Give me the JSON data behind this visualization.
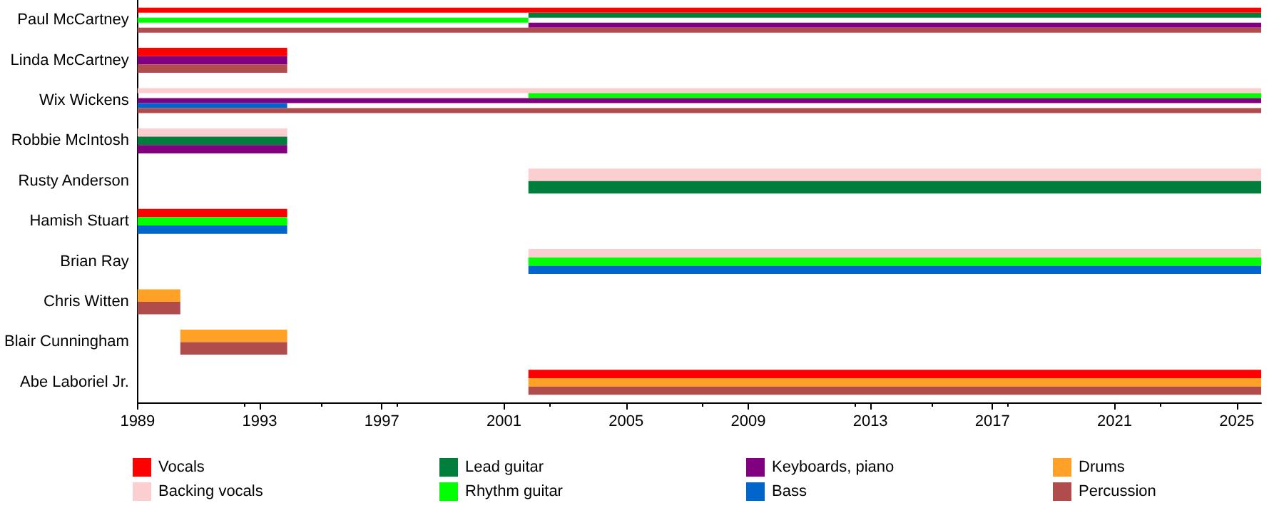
{
  "chart_data": {
    "type": "bar",
    "orientation": "horizontal",
    "categories": [
      "Paul McCartney",
      "Linda McCartney",
      "Wix Wickens",
      "Robbie McIntosh",
      "Rusty Anderson",
      "Hamish Stuart",
      "Brian Ray",
      "Chris Witten",
      "Blair Cunningham",
      "Abe Laboriel Jr."
    ],
    "xlim": [
      1989,
      2025.8
    ],
    "xticks": [
      1989,
      1993,
      1997,
      2001,
      2005,
      2009,
      2013,
      2017,
      2021,
      2025
    ],
    "grid": false,
    "legend": "bottom",
    "series": [
      {
        "name": "Vocals",
        "color": "#ff0000",
        "base": [
          1989,
          1989,
          null,
          null,
          null,
          1989,
          null,
          null,
          null,
          2001.8
        ],
        "values": [
          36.8,
          4.9,
          null,
          null,
          null,
          4.9,
          null,
          null,
          null,
          24.0
        ]
      },
      {
        "name": "Backing vocals",
        "color": "#fbcfcf",
        "base": [
          null,
          null,
          1989,
          1989,
          2001.8,
          null,
          2001.8,
          null,
          null,
          null
        ],
        "values": [
          null,
          null,
          36.8,
          4.9,
          24.0,
          null,
          24.0,
          null,
          null,
          null
        ]
      },
      {
        "name": "Lead guitar",
        "color": "#007f3c",
        "base": [
          2001.8,
          null,
          null,
          1989,
          2001.8,
          null,
          null,
          null,
          null,
          null
        ],
        "values": [
          24.0,
          null,
          null,
          4.9,
          24.0,
          null,
          null,
          null,
          null,
          null
        ]
      },
      {
        "name": "Rhythm guitar",
        "color": "#00ff00",
        "base": [
          1989,
          null,
          2001.8,
          null,
          null,
          1989,
          2001.8,
          null,
          null,
          null
        ],
        "values": [
          12.8,
          null,
          24.0,
          null,
          null,
          4.9,
          24.0,
          null,
          null,
          null
        ]
      },
      {
        "name": "Keyboards, piano",
        "color": "#800080",
        "base": [
          2001.8,
          1989,
          1989,
          1989,
          null,
          null,
          null,
          null,
          null,
          null
        ],
        "values": [
          24.0,
          4.9,
          36.8,
          4.9,
          null,
          null,
          null,
          null,
          null,
          null
        ]
      },
      {
        "name": "Bass",
        "color": "#0066cc",
        "base": [
          null,
          null,
          1989,
          null,
          null,
          1989,
          2001.8,
          null,
          null,
          null
        ],
        "values": [
          null,
          null,
          4.9,
          null,
          null,
          4.9,
          24.0,
          null,
          null,
          null
        ]
      },
      {
        "name": "Drums",
        "color": "#ffa126",
        "base": [
          null,
          null,
          null,
          null,
          null,
          null,
          null,
          1989,
          1990.4,
          2001.8
        ],
        "values": [
          null,
          null,
          null,
          null,
          null,
          null,
          null,
          1.4,
          3.5,
          24.0
        ]
      },
      {
        "name": "Percussion",
        "color": "#b04c4c",
        "base": [
          1989,
          1989,
          1989,
          null,
          null,
          null,
          null,
          1989,
          1990.4,
          2001.8
        ],
        "values": [
          36.8,
          4.9,
          36.8,
          null,
          null,
          null,
          null,
          1.4,
          3.5,
          24.0
        ]
      }
    ]
  }
}
